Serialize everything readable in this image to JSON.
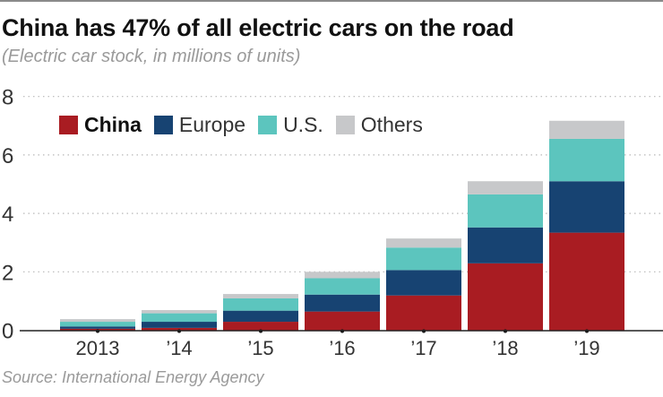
{
  "chart_data": {
    "type": "bar",
    "stacked": true,
    "title": "China has 47% of all electric cars on the road",
    "subtitle": "(Electric car stock, in millions of units)",
    "source": "Source: International Energy Agency",
    "categories": [
      "2013",
      "'14",
      "'15",
      "'16",
      "'17",
      "'18",
      "'19"
    ],
    "series": [
      {
        "name": "China",
        "color": "#a91c22",
        "values": [
          0.05,
          0.08,
          0.29,
          0.64,
          1.19,
          2.29,
          3.34
        ]
      },
      {
        "name": "Europe",
        "color": "#174372",
        "values": [
          0.08,
          0.21,
          0.38,
          0.58,
          0.87,
          1.23,
          1.76
        ]
      },
      {
        "name": "U.S.",
        "color": "#5cc5be",
        "values": [
          0.16,
          0.29,
          0.42,
          0.56,
          0.77,
          1.13,
          1.45
        ]
      },
      {
        "name": "Others",
        "color": "#c7c8ca",
        "values": [
          0.09,
          0.11,
          0.15,
          0.22,
          0.31,
          0.45,
          0.62
        ]
      }
    ],
    "yticks": [
      0,
      2,
      4,
      6,
      8
    ],
    "ylim": [
      0,
      8
    ],
    "grid": true,
    "legend_position": "top-left"
  }
}
